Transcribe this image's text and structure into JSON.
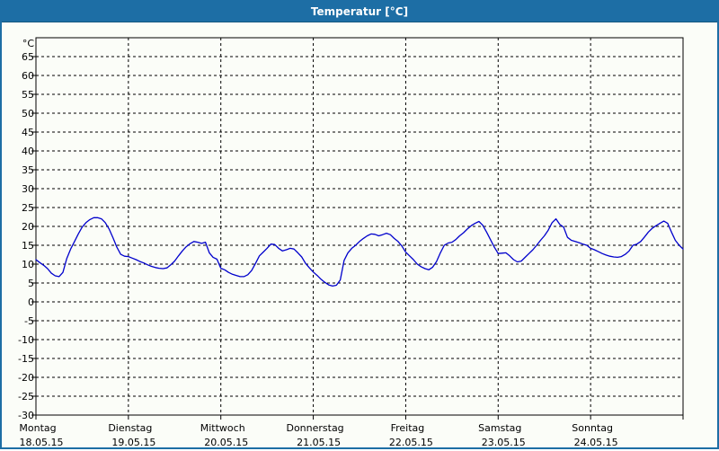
{
  "window": {
    "title": "Temperatur [°C]"
  },
  "colors": {
    "titlebar_bg": "#1d6ea5",
    "titlebar_text": "#ffffff",
    "window_border": "#1d6ea5",
    "plot_background": "#fbfdf8",
    "plot_border": "#000000",
    "grid": "#000000",
    "line": "#0000cc",
    "label": "#000000"
  },
  "chart_data": {
    "type": "line",
    "title": "Temperatur [°C]",
    "y_unit": "°C",
    "ylim": [
      -30,
      70
    ],
    "y_tick_step": 5,
    "y_tick_labels": [
      65,
      60,
      55,
      50,
      45,
      40,
      35,
      30,
      25,
      20,
      15,
      10,
      5,
      0,
      -5,
      -10,
      -15,
      -20,
      -25,
      -30
    ],
    "grid_style": "dashed",
    "legend_position": "none",
    "hours_per_day": 24,
    "x_days": [
      {
        "name": "Montag",
        "date": "18.05.15"
      },
      {
        "name": "Dienstag",
        "date": "19.05.15"
      },
      {
        "name": "Mittwoch",
        "date": "20.05.15"
      },
      {
        "name": "Donnerstag",
        "date": "21.05.15"
      },
      {
        "name": "Freitag",
        "date": "22.05.15"
      },
      {
        "name": "Samstag",
        "date": "23.05.15"
      },
      {
        "name": "Sonntag",
        "date": "24.05.15"
      }
    ],
    "series": [
      {
        "name": "Temperatur",
        "color": "#0000cc",
        "points_hour_degC": [
          [
            0,
            11.2
          ],
          [
            1,
            10.4
          ],
          [
            2,
            9.7
          ],
          [
            3,
            8.8
          ],
          [
            4,
            7.6
          ],
          [
            5,
            6.9
          ],
          [
            6,
            6.7
          ],
          [
            7,
            7.8
          ],
          [
            8,
            11.5
          ],
          [
            9,
            14.0
          ],
          [
            10,
            16.0
          ],
          [
            11,
            18.0
          ],
          [
            12,
            19.8
          ],
          [
            13,
            21.0
          ],
          [
            14,
            21.8
          ],
          [
            15,
            22.3
          ],
          [
            16,
            22.3
          ],
          [
            17,
            22.0
          ],
          [
            18,
            21.0
          ],
          [
            19,
            19.3
          ],
          [
            20,
            17.0
          ],
          [
            21,
            14.5
          ],
          [
            22,
            12.6
          ],
          [
            23,
            12.1
          ],
          [
            24,
            12.0
          ],
          [
            25,
            11.6
          ],
          [
            26,
            11.2
          ],
          [
            27,
            10.7
          ],
          [
            28,
            10.3
          ],
          [
            29,
            9.8
          ],
          [
            30,
            9.4
          ],
          [
            31,
            9.1
          ],
          [
            32,
            8.9
          ],
          [
            33,
            8.8
          ],
          [
            34,
            9.0
          ],
          [
            35,
            9.8
          ],
          [
            36,
            10.8
          ],
          [
            37,
            12.2
          ],
          [
            38,
            13.5
          ],
          [
            39,
            14.6
          ],
          [
            40,
            15.4
          ],
          [
            41,
            16.0
          ],
          [
            42,
            15.8
          ],
          [
            43,
            15.5
          ],
          [
            44,
            15.8
          ],
          [
            45,
            13.0
          ],
          [
            46,
            11.8
          ],
          [
            47,
            11.3
          ],
          [
            48,
            8.9
          ],
          [
            49,
            8.5
          ],
          [
            50,
            7.8
          ],
          [
            51,
            7.3
          ],
          [
            52,
            7.0
          ],
          [
            53,
            6.7
          ],
          [
            54,
            6.7
          ],
          [
            55,
            7.2
          ],
          [
            56,
            8.3
          ],
          [
            57,
            10.2
          ],
          [
            58,
            12.2
          ],
          [
            59,
            13.2
          ],
          [
            60,
            14.2
          ],
          [
            61,
            15.3
          ],
          [
            62,
            15.2
          ],
          [
            63,
            14.2
          ],
          [
            64,
            13.5
          ],
          [
            65,
            13.8
          ],
          [
            66,
            14.2
          ],
          [
            67,
            14.0
          ],
          [
            68,
            13.0
          ],
          [
            69,
            11.9
          ],
          [
            70,
            10.2
          ],
          [
            71,
            9.0
          ],
          [
            72,
            7.9
          ],
          [
            73,
            7.0
          ],
          [
            74,
            6.0
          ],
          [
            75,
            5.2
          ],
          [
            76,
            4.5
          ],
          [
            77,
            4.2
          ],
          [
            78,
            4.4
          ],
          [
            79,
            5.8
          ],
          [
            80,
            11.0
          ],
          [
            81,
            13.0
          ],
          [
            82,
            14.2
          ],
          [
            83,
            15.0
          ],
          [
            84,
            16.0
          ],
          [
            85,
            16.8
          ],
          [
            86,
            17.5
          ],
          [
            87,
            18.0
          ],
          [
            88,
            17.9
          ],
          [
            89,
            17.5
          ],
          [
            90,
            17.8
          ],
          [
            91,
            18.2
          ],
          [
            92,
            17.8
          ],
          [
            93,
            16.8
          ],
          [
            94,
            16.0
          ],
          [
            95,
            14.8
          ],
          [
            96,
            13.2
          ],
          [
            97,
            12.2
          ],
          [
            98,
            11.2
          ],
          [
            99,
            10.0
          ],
          [
            100,
            9.3
          ],
          [
            101,
            8.8
          ],
          [
            102,
            8.5
          ],
          [
            103,
            9.2
          ],
          [
            104,
            10.7
          ],
          [
            105,
            13.0
          ],
          [
            106,
            15.0
          ],
          [
            107,
            15.6
          ],
          [
            108,
            15.8
          ],
          [
            109,
            16.5
          ],
          [
            110,
            17.5
          ],
          [
            111,
            18.3
          ],
          [
            112,
            19.3
          ],
          [
            113,
            20.2
          ],
          [
            114,
            20.8
          ],
          [
            115,
            21.3
          ],
          [
            116,
            20.3
          ],
          [
            117,
            18.5
          ],
          [
            118,
            16.5
          ],
          [
            119,
            14.5
          ],
          [
            120,
            12.8
          ],
          [
            121,
            12.9
          ],
          [
            122,
            13.0
          ],
          [
            123,
            12.2
          ],
          [
            124,
            11.2
          ],
          [
            125,
            10.6
          ],
          [
            126,
            10.8
          ],
          [
            127,
            11.8
          ],
          [
            128,
            12.8
          ],
          [
            129,
            13.8
          ],
          [
            130,
            15.0
          ],
          [
            131,
            16.3
          ],
          [
            132,
            17.5
          ],
          [
            133,
            19.0
          ],
          [
            134,
            21.0
          ],
          [
            135,
            22.0
          ],
          [
            136,
            20.5
          ],
          [
            137,
            19.8
          ],
          [
            138,
            17.1
          ],
          [
            139,
            16.3
          ],
          [
            140,
            16.0
          ],
          [
            141,
            15.7
          ],
          [
            142,
            15.3
          ],
          [
            143,
            15.0
          ],
          [
            144,
            14.2
          ],
          [
            145,
            13.8
          ],
          [
            146,
            13.3
          ],
          [
            147,
            12.8
          ],
          [
            148,
            12.4
          ],
          [
            149,
            12.1
          ],
          [
            150,
            11.9
          ],
          [
            151,
            11.8
          ],
          [
            152,
            12.0
          ],
          [
            153,
            12.6
          ],
          [
            154,
            13.5
          ],
          [
            155,
            15.0
          ],
          [
            156,
            15.3
          ],
          [
            157,
            16.0
          ],
          [
            158,
            17.2
          ],
          [
            159,
            18.5
          ],
          [
            160,
            19.5
          ],
          [
            161,
            20.2
          ],
          [
            162,
            20.8
          ],
          [
            163,
            21.4
          ],
          [
            164,
            20.8
          ],
          [
            165,
            18.5
          ],
          [
            166,
            16.3
          ],
          [
            167,
            15.0
          ],
          [
            168,
            14.0
          ]
        ]
      }
    ]
  }
}
